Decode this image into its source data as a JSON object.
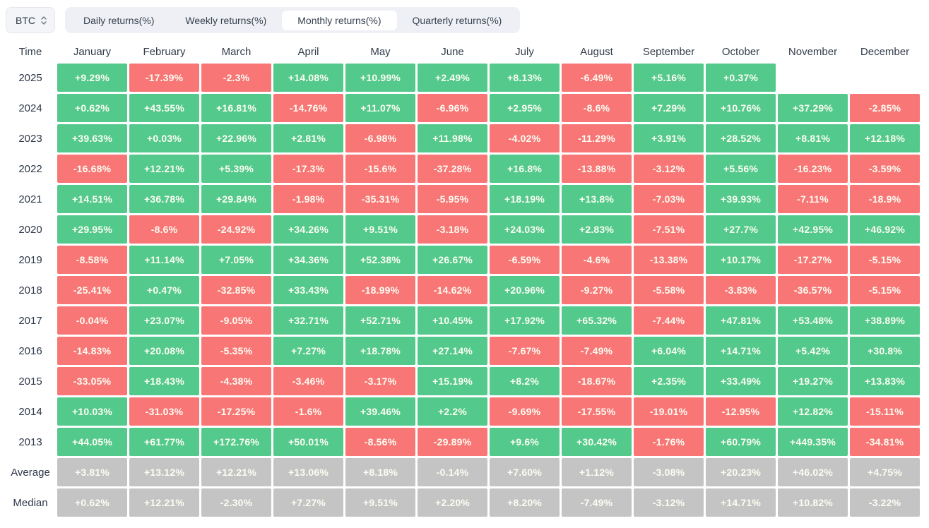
{
  "controls": {
    "symbol": "BTC",
    "tabs": [
      {
        "label": "Daily returns(%)",
        "active": false
      },
      {
        "label": "Weekly returns(%)",
        "active": false
      },
      {
        "label": "Monthly returns(%)",
        "active": true
      },
      {
        "label": "Quarterly returns(%)",
        "active": false
      }
    ]
  },
  "colors": {
    "positive": "#53c98c",
    "negative": "#f87676",
    "summary": "#c4c4c4",
    "tabbar_bg": "#eef0f5",
    "active_tab_bg": "#ffffff"
  },
  "icons": {
    "symbol_select_arrows": "chevron-up-down"
  },
  "table": {
    "time_header": "Time",
    "months": [
      "January",
      "February",
      "March",
      "April",
      "May",
      "June",
      "July",
      "August",
      "September",
      "October",
      "November",
      "December"
    ],
    "rows": [
      {
        "label": "2025",
        "type": "year",
        "values": [
          "+9.29%",
          "-17.39%",
          "-2.3%",
          "+14.08%",
          "+10.99%",
          "+2.49%",
          "+8.13%",
          "-6.49%",
          "+5.16%",
          "+0.37%",
          "",
          ""
        ]
      },
      {
        "label": "2024",
        "type": "year",
        "values": [
          "+0.62%",
          "+43.55%",
          "+16.81%",
          "-14.76%",
          "+11.07%",
          "-6.96%",
          "+2.95%",
          "-8.6%",
          "+7.29%",
          "+10.76%",
          "+37.29%",
          "-2.85%"
        ]
      },
      {
        "label": "2023",
        "type": "year",
        "values": [
          "+39.63%",
          "+0.03%",
          "+22.96%",
          "+2.81%",
          "-6.98%",
          "+11.98%",
          "-4.02%",
          "-11.29%",
          "+3.91%",
          "+28.52%",
          "+8.81%",
          "+12.18%"
        ]
      },
      {
        "label": "2022",
        "type": "year",
        "values": [
          "-16.68%",
          "+12.21%",
          "+5.39%",
          "-17.3%",
          "-15.6%",
          "-37.28%",
          "+16.8%",
          "-13.88%",
          "-3.12%",
          "+5.56%",
          "-16.23%",
          "-3.59%"
        ]
      },
      {
        "label": "2021",
        "type": "year",
        "values": [
          "+14.51%",
          "+36.78%",
          "+29.84%",
          "-1.98%",
          "-35.31%",
          "-5.95%",
          "+18.19%",
          "+13.8%",
          "-7.03%",
          "+39.93%",
          "-7.11%",
          "-18.9%"
        ]
      },
      {
        "label": "2020",
        "type": "year",
        "values": [
          "+29.95%",
          "-8.6%",
          "-24.92%",
          "+34.26%",
          "+9.51%",
          "-3.18%",
          "+24.03%",
          "+2.83%",
          "-7.51%",
          "+27.7%",
          "+42.95%",
          "+46.92%"
        ]
      },
      {
        "label": "2019",
        "type": "year",
        "values": [
          "-8.58%",
          "+11.14%",
          "+7.05%",
          "+34.36%",
          "+52.38%",
          "+26.67%",
          "-6.59%",
          "-4.6%",
          "-13.38%",
          "+10.17%",
          "-17.27%",
          "-5.15%"
        ]
      },
      {
        "label": "2018",
        "type": "year",
        "values": [
          "-25.41%",
          "+0.47%",
          "-32.85%",
          "+33.43%",
          "-18.99%",
          "-14.62%",
          "+20.96%",
          "-9.27%",
          "-5.58%",
          "-3.83%",
          "-36.57%",
          "-5.15%"
        ]
      },
      {
        "label": "2017",
        "type": "year",
        "values": [
          "-0.04%",
          "+23.07%",
          "-9.05%",
          "+32.71%",
          "+52.71%",
          "+10.45%",
          "+17.92%",
          "+65.32%",
          "-7.44%",
          "+47.81%",
          "+53.48%",
          "+38.89%"
        ]
      },
      {
        "label": "2016",
        "type": "year",
        "values": [
          "-14.83%",
          "+20.08%",
          "-5.35%",
          "+7.27%",
          "+18.78%",
          "+27.14%",
          "-7.67%",
          "-7.49%",
          "+6.04%",
          "+14.71%",
          "+5.42%",
          "+30.8%"
        ]
      },
      {
        "label": "2015",
        "type": "year",
        "values": [
          "-33.05%",
          "+18.43%",
          "-4.38%",
          "-3.46%",
          "-3.17%",
          "+15.19%",
          "+8.2%",
          "-18.67%",
          "+2.35%",
          "+33.49%",
          "+19.27%",
          "+13.83%"
        ]
      },
      {
        "label": "2014",
        "type": "year",
        "values": [
          "+10.03%",
          "-31.03%",
          "-17.25%",
          "-1.6%",
          "+39.46%",
          "+2.2%",
          "-9.69%",
          "-17.55%",
          "-19.01%",
          "-12.95%",
          "+12.82%",
          "-15.11%"
        ]
      },
      {
        "label": "2013",
        "type": "year",
        "values": [
          "+44.05%",
          "+61.77%",
          "+172.76%",
          "+50.01%",
          "-8.56%",
          "-29.89%",
          "+9.6%",
          "+30.42%",
          "-1.76%",
          "+60.79%",
          "+449.35%",
          "-34.81%"
        ]
      },
      {
        "label": "Average",
        "type": "summary",
        "values": [
          "+3.81%",
          "+13.12%",
          "+12.21%",
          "+13.06%",
          "+8.18%",
          "-0.14%",
          "+7.60%",
          "+1.12%",
          "-3.08%",
          "+20.23%",
          "+46.02%",
          "+4.75%"
        ]
      },
      {
        "label": "Median",
        "type": "summary",
        "values": [
          "+0.62%",
          "+12.21%",
          "-2.30%",
          "+7.27%",
          "+9.51%",
          "+2.20%",
          "+8.20%",
          "-7.49%",
          "-3.12%",
          "+14.71%",
          "+10.82%",
          "-3.22%"
        ]
      }
    ]
  }
}
